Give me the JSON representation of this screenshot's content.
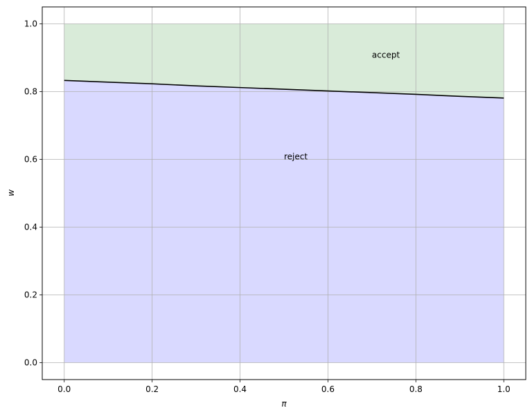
{
  "chart_data": {
    "type": "area",
    "title": "",
    "xlabel": "π",
    "ylabel": "w",
    "xlim": [
      -0.05,
      1.05
    ],
    "ylim": [
      -0.05,
      1.05
    ],
    "grid": true,
    "x_ticks": [
      "0.0",
      "0.2",
      "0.4",
      "0.6",
      "0.8",
      "1.0"
    ],
    "y_ticks": [
      "0.0",
      "0.2",
      "0.4",
      "0.6",
      "0.8",
      "1.0"
    ],
    "x": [
      0.0,
      0.1,
      0.2,
      0.3,
      0.4,
      0.5,
      0.6,
      0.7,
      0.8,
      0.9,
      1.0
    ],
    "boundary": [
      0.833,
      0.828,
      0.823,
      0.817,
      0.812,
      0.807,
      0.802,
      0.797,
      0.792,
      0.786,
      0.781
    ],
    "regions": [
      {
        "label": "accept",
        "from": "boundary",
        "to": 1.0,
        "color": "#d9ebd9",
        "label_at": [
          0.7,
          0.9
        ]
      },
      {
        "label": "reject",
        "from": 0.0,
        "to": "boundary",
        "color": "#d9d9ff",
        "label_at": [
          0.5,
          0.6
        ]
      }
    ],
    "line_color": "#000000",
    "grid_color": "#b0b0b0"
  }
}
